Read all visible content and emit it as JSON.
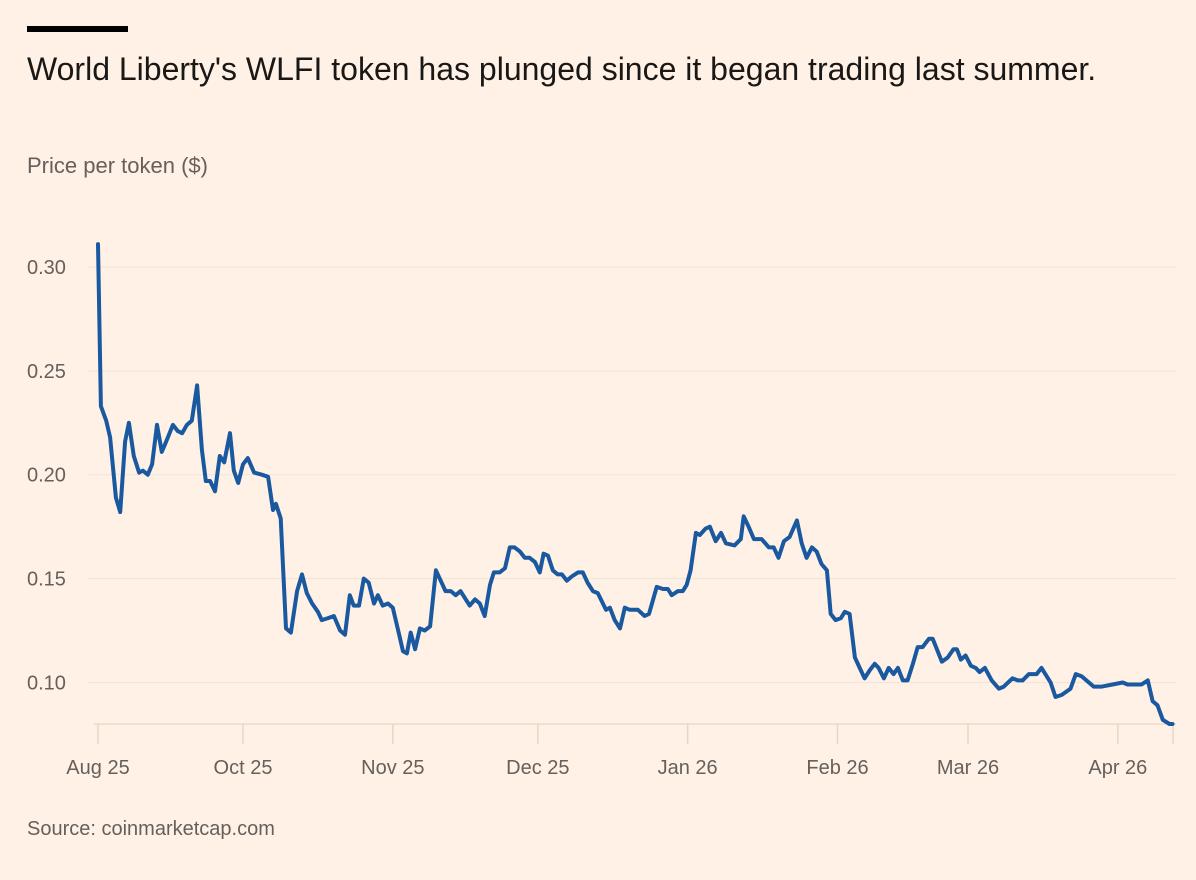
{
  "header": {
    "title": "World Liberty's WLFI token has plunged since it began trading last summer.",
    "subtitle": "Price per token ($)"
  },
  "footer": {
    "source": "Source: coinmarketcap.com"
  },
  "colors": {
    "background": "#fff1e5",
    "line": "#1a58a0",
    "grid": "#f1e4d8",
    "text": "#66605c"
  },
  "chart_data": {
    "type": "line",
    "title": "World Liberty's WLFI token has plunged since it began trading last summer.",
    "ylabel": "Price per token ($)",
    "xlabel": "",
    "x_unit": "days since start of series",
    "ylim": [
      0.08,
      0.3
    ],
    "xlim": [
      0,
      222
    ],
    "grid": true,
    "yticks": [
      {
        "value": 0.1,
        "label": "0.10"
      },
      {
        "value": 0.15,
        "label": "0.15"
      },
      {
        "value": 0.2,
        "label": "0.20"
      },
      {
        "value": 0.25,
        "label": "0.25"
      },
      {
        "value": 0.3,
        "label": "0.30"
      }
    ],
    "xticks": [
      {
        "value": 0,
        "label": "Aug 25"
      },
      {
        "value": 30,
        "label": "Oct 25"
      },
      {
        "value": 61,
        "label": "Nov 25"
      },
      {
        "value": 91,
        "label": "Dec 25"
      },
      {
        "value": 122,
        "label": "Jan 26"
      },
      {
        "value": 153,
        "label": "Feb 26"
      },
      {
        "value": 180,
        "label": "Mar 26"
      },
      {
        "value": 211,
        "label": "Apr 26"
      }
    ],
    "series": [
      {
        "name": "WLFI price",
        "x": [
          0,
          0.6,
          1.7,
          2.5,
          3.7,
          4.6,
          5.6,
          6.4,
          7.4,
          8.5,
          9.3,
          10.3,
          11.2,
          12.2,
          13.2,
          14.1,
          15.5,
          16.5,
          17.4,
          18.4,
          19.4,
          20.5,
          21.5,
          22.3,
          23.2,
          24.2,
          25.2,
          26.1,
          27.3,
          28.1,
          29.0,
          30.0,
          31.0,
          32.3,
          33.9,
          35.2,
          36.2,
          36.8,
          37.8,
          38.9,
          39.9,
          41.2,
          42.2,
          43.2,
          44.3,
          45.5,
          46.3,
          47.6,
          48.8,
          50.1,
          51.1,
          52.1,
          52.9,
          54.0,
          55.0,
          56.0,
          57.1,
          57.9,
          58.9,
          60.0,
          61.0,
          62.0,
          63.1,
          63.9,
          64.7,
          65.6,
          66.6,
          67.6,
          68.7,
          69.9,
          70.9,
          71.9,
          73.0,
          74.0,
          75.0,
          76.1,
          76.9,
          78.0,
          79.0,
          80.0,
          81.1,
          81.9,
          83.1,
          84.2,
          85.2,
          86.2,
          87.3,
          88.3,
          89.3,
          90.4,
          91.4,
          92.2,
          93.1,
          94.1,
          95.1,
          96.0,
          97.0,
          98.0,
          99.3,
          100.3,
          101.3,
          102.4,
          103.4,
          105.1,
          105.9,
          106.9,
          108.0,
          109.0,
          110.0,
          111.7,
          113.1,
          114.0,
          115.6,
          116.9,
          117.9,
          118.7,
          120.0,
          121.0,
          121.8,
          122.6,
          123.7,
          124.5,
          125.7,
          126.6,
          127.8,
          128.9,
          129.9,
          131.7,
          133.0,
          133.6,
          134.6,
          135.7,
          137.3,
          138.8,
          139.8,
          140.8,
          141.9,
          143.1,
          144.6,
          145.6,
          146.6,
          147.7,
          148.7,
          149.7,
          150.8,
          151.6,
          152.6,
          153.7,
          154.5,
          155.5,
          156.6,
          157.6,
          158.6,
          159.7,
          160.7,
          161.5,
          162.6,
          163.6,
          164.6,
          165.5,
          166.5,
          167.5,
          168.6,
          169.6,
          170.6,
          171.9,
          172.7,
          174.6,
          175.8,
          177.0,
          177.7,
          178.5,
          179.5,
          180.6,
          181.6,
          182.4,
          183.5,
          184.9,
          186.4,
          187.4,
          189.2,
          190.3,
          191.3,
          192.6,
          194.2,
          195.2,
          197.1,
          198.1,
          199.4,
          200.6,
          201.2,
          202.3,
          203.5,
          204.5,
          206.0,
          207.7,
          209.9,
          212.0,
          213.0,
          215.9,
          217.2,
          218.2,
          219.2,
          220.3,
          221.7,
          222.3
        ],
        "y": [
          0.311,
          0.233,
          0.226,
          0.218,
          0.189,
          0.182,
          0.216,
          0.225,
          0.209,
          0.201,
          0.202,
          0.2,
          0.205,
          0.224,
          0.211,
          0.216,
          0.224,
          0.221,
          0.22,
          0.224,
          0.226,
          0.243,
          0.212,
          0.197,
          0.197,
          0.192,
          0.209,
          0.206,
          0.22,
          0.202,
          0.196,
          0.205,
          0.208,
          0.201,
          0.2,
          0.199,
          0.183,
          0.186,
          0.179,
          0.126,
          0.124,
          0.144,
          0.152,
          0.143,
          0.138,
          0.134,
          0.13,
          0.131,
          0.132,
          0.125,
          0.123,
          0.142,
          0.137,
          0.137,
          0.15,
          0.148,
          0.138,
          0.142,
          0.137,
          0.138,
          0.136,
          0.126,
          0.115,
          0.114,
          0.124,
          0.116,
          0.126,
          0.125,
          0.127,
          0.154,
          0.149,
          0.144,
          0.144,
          0.142,
          0.144,
          0.14,
          0.137,
          0.14,
          0.138,
          0.132,
          0.147,
          0.153,
          0.153,
          0.155,
          0.165,
          0.165,
          0.163,
          0.16,
          0.16,
          0.158,
          0.153,
          0.162,
          0.161,
          0.154,
          0.152,
          0.152,
          0.149,
          0.151,
          0.153,
          0.153,
          0.148,
          0.144,
          0.143,
          0.135,
          0.136,
          0.13,
          0.126,
          0.136,
          0.135,
          0.135,
          0.132,
          0.133,
          0.146,
          0.145,
          0.145,
          0.142,
          0.144,
          0.144,
          0.147,
          0.154,
          0.172,
          0.171,
          0.174,
          0.175,
          0.168,
          0.172,
          0.167,
          0.166,
          0.169,
          0.18,
          0.175,
          0.169,
          0.169,
          0.165,
          0.165,
          0.16,
          0.168,
          0.17,
          0.178,
          0.167,
          0.16,
          0.165,
          0.163,
          0.157,
          0.154,
          0.133,
          0.13,
          0.131,
          0.134,
          0.133,
          0.112,
          0.107,
          0.102,
          0.106,
          0.109,
          0.107,
          0.102,
          0.107,
          0.104,
          0.107,
          0.101,
          0.101,
          0.109,
          0.117,
          0.117,
          0.121,
          0.121,
          0.11,
          0.112,
          0.116,
          0.116,
          0.111,
          0.113,
          0.108,
          0.107,
          0.105,
          0.107,
          0.101,
          0.097,
          0.098,
          0.102,
          0.101,
          0.101,
          0.104,
          0.104,
          0.107,
          0.1,
          0.093,
          0.094,
          0.096,
          0.097,
          0.104,
          0.103,
          0.101,
          0.098,
          0.098,
          0.099,
          0.1,
          0.099,
          0.099,
          0.101,
          0.091,
          0.089,
          0.082,
          0.08,
          0.08
        ]
      }
    ]
  }
}
